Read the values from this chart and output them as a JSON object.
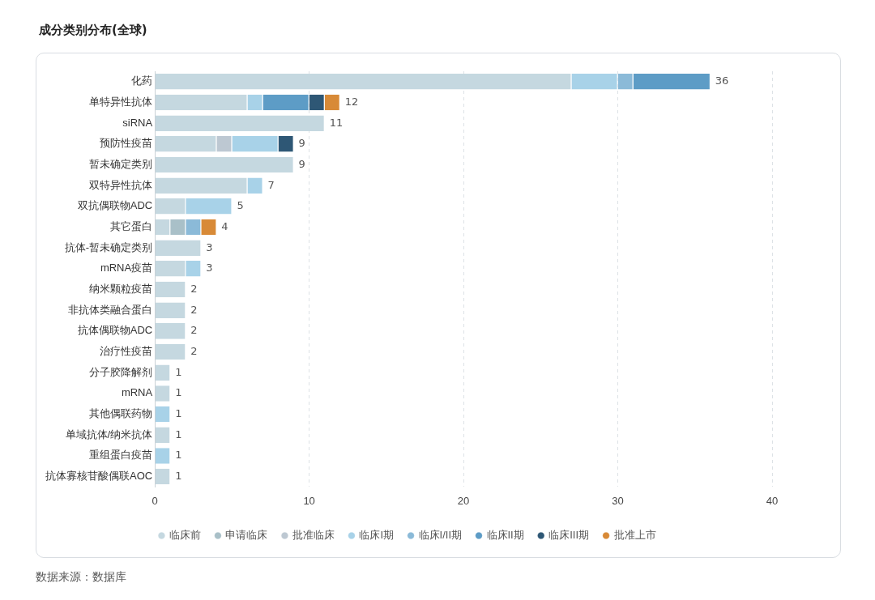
{
  "chart_data": {
    "type": "bar",
    "orientation": "horizontal",
    "stacked": true,
    "title": "成分类别分布(全球)",
    "categories": [
      "化药",
      "单特异性抗体",
      "siRNA",
      "预防性疫苗",
      "暂未确定类别",
      "双特异性抗体",
      "双抗偶联物ADC",
      "其它蛋白",
      "抗体-暂未确定类别",
      "mRNA疫苗",
      "纳米颗粒疫苗",
      "非抗体类融合蛋白",
      "抗体偶联物ADC",
      "治疗性疫苗",
      "分子胶降解剂",
      "mRNA",
      "其他偶联药物",
      "单域抗体/纳米抗体",
      "重组蛋白疫苗",
      "抗体寡核苷酸偶联AOC"
    ],
    "series": [
      {
        "name": "临床前",
        "color": "#c5d8e0",
        "values": [
          27,
          6,
          11,
          4,
          9,
          6,
          2,
          1,
          3,
          2,
          2,
          2,
          2,
          2,
          1,
          1,
          null,
          1,
          null,
          1
        ]
      },
      {
        "name": "申请临床",
        "color": "#a9c0c8",
        "values": [
          null,
          null,
          null,
          null,
          null,
          null,
          null,
          1,
          null,
          null,
          null,
          null,
          null,
          null,
          null,
          null,
          null,
          null,
          null,
          null
        ]
      },
      {
        "name": "批准临床",
        "color": "#bdc8d2",
        "values": [
          null,
          null,
          null,
          1,
          null,
          null,
          null,
          null,
          null,
          null,
          null,
          null,
          null,
          null,
          null,
          null,
          null,
          null,
          null,
          null
        ]
      },
      {
        "name": "临床I期",
        "color": "#a8d2e8",
        "values": [
          3,
          1,
          null,
          3,
          null,
          1,
          3,
          null,
          null,
          1,
          null,
          null,
          null,
          null,
          null,
          null,
          1,
          null,
          1,
          null
        ]
      },
      {
        "name": "临床I/II期",
        "color": "#8bbad8",
        "values": [
          1,
          null,
          null,
          null,
          null,
          null,
          null,
          1,
          null,
          null,
          null,
          null,
          null,
          null,
          null,
          null,
          null,
          null,
          null,
          null
        ]
      },
      {
        "name": "临床II期",
        "color": "#5d9cc6",
        "values": [
          5,
          3,
          null,
          null,
          null,
          null,
          null,
          null,
          null,
          null,
          null,
          null,
          null,
          null,
          null,
          null,
          null,
          null,
          null,
          null
        ]
      },
      {
        "name": "临床III期",
        "color": "#2e5775",
        "values": [
          null,
          1,
          null,
          1,
          null,
          null,
          null,
          null,
          null,
          null,
          null,
          null,
          null,
          null,
          null,
          null,
          null,
          null,
          null,
          null
        ]
      },
      {
        "name": "批准上市",
        "color": "#d88a37",
        "values": [
          null,
          1,
          null,
          null,
          null,
          null,
          null,
          1,
          null,
          null,
          null,
          null,
          null,
          null,
          null,
          null,
          null,
          null,
          null,
          null
        ]
      }
    ],
    "totals": [
      "36",
      "12",
      "11",
      "9",
      "9",
      "7",
      "5",
      "4",
      "3",
      "3",
      "2",
      "2",
      "2",
      "2",
      "1",
      "1",
      "1",
      "1",
      "1",
      "1"
    ],
    "xlim": [
      0,
      40
    ],
    "xticks": [
      0,
      10,
      20,
      30,
      40
    ],
    "grid": "x",
    "legend": "bottom",
    "annotations": [
      "数据来源：数据库"
    ]
  }
}
